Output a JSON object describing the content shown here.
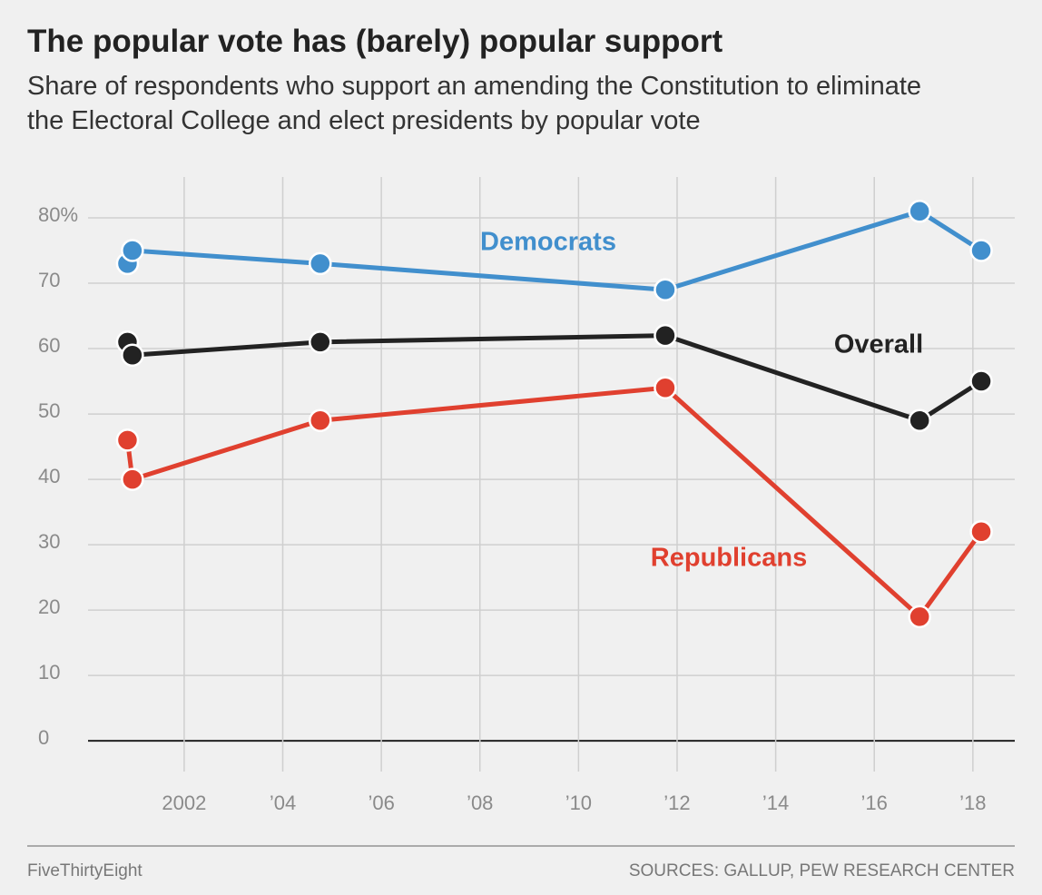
{
  "chart_data": {
    "type": "line",
    "title": "The popular vote has (barely) popular support",
    "subtitle": "Share of respondents who support an amending the Constitution to eliminate the Electoral College and elect presidents by popular vote",
    "x": [
      2000.85,
      2000.95,
      2004.76,
      2011.76,
      2016.92,
      2018.17
    ],
    "series": [
      {
        "name": "Democrats",
        "color": "#418fcd",
        "values": [
          73,
          75,
          73,
          69,
          81,
          75
        ]
      },
      {
        "name": "Overall",
        "color": "#222222",
        "values": [
          61,
          59,
          61,
          62,
          49,
          55
        ]
      },
      {
        "name": "Republicans",
        "color": "#e0402f",
        "values": [
          46,
          40,
          49,
          54,
          19,
          32
        ]
      }
    ],
    "xlim": [
      2000.05,
      2018.85
    ],
    "ylim": [
      -4.7,
      86.25
    ],
    "xticks": [
      2002,
      {
        "value": 2004,
        "label": "’04"
      },
      {
        "value": 2006,
        "label": "’06"
      },
      {
        "value": 2008,
        "label": "’08"
      },
      {
        "value": 2010,
        "label": "’10"
      },
      {
        "value": 2012,
        "label": "’12"
      },
      {
        "value": 2014,
        "label": "’14"
      },
      {
        "value": 2016,
        "label": "’16"
      },
      {
        "value": 2018,
        "label": "’18"
      }
    ],
    "yticks": [
      0,
      10,
      20,
      30,
      40,
      50,
      60,
      70,
      {
        "value": 80,
        "label": "80%"
      }
    ],
    "grid": true,
    "footer_left": "FiveThirtyEight",
    "footer_right": "SOURCES: GALLUP, PEW RESEARCH CENTER"
  }
}
